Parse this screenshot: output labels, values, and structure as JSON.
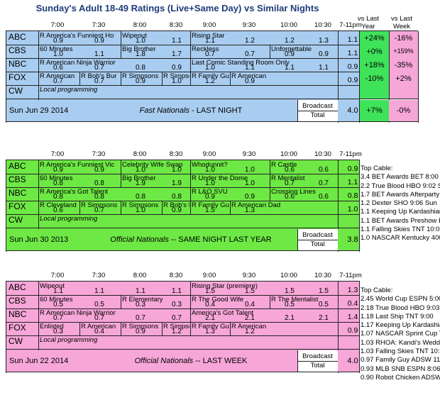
{
  "title": "Sunday's Adult 18-49 Ratings (Live+Same Day) vs Similar Nights",
  "vs_year": "vs Last Year",
  "vs_week": "vs Last Week",
  "times": [
    "7:00",
    "7:30",
    "8:00",
    "8:30",
    "9:00",
    "9:30",
    "10:00",
    "10:30",
    "7-11pm"
  ],
  "networks": [
    "ABC",
    "CBS",
    "NBC",
    "FOX",
    "CW"
  ],
  "blocks": [
    {
      "date": "Sun Jun 29 2014",
      "desc_bold": "Fast Nationals",
      "desc_rest": " - LAST NIGHT",
      "bc_line1": "Broadcast",
      "bc_line2": "Total",
      "bc_value": "4.0",
      "bc_year": "+7%",
      "bc_week": "-0%",
      "rows": [
        {
          "progs": [
            [
              "R America's Funniest Ho",
              0,
              2
            ],
            [
              "Wipeout",
              2,
              4
            ],
            [
              "Rising Star",
              4,
              8
            ]
          ],
          "ratings": [
            "0.9",
            "0.9",
            "1.0",
            "1.1",
            "1.1",
            "1.2",
            "1.2",
            "1.3"
          ],
          "total": "1.1",
          "year": "+24%",
          "week": "-16%"
        },
        {
          "progs": [
            [
              "60 Minutes",
              0,
              2
            ],
            [
              "Big Brother",
              2,
              4
            ],
            [
              "Reckless",
              4,
              6
            ],
            [
              "Unforgettable",
              6,
              8
            ]
          ],
          "ratings": [
            "1.0",
            "1.1",
            "1.8",
            "1.7",
            "0.7",
            "0.7",
            "0.9",
            "0.9"
          ],
          "total": "1.1",
          "year": "+0%",
          "week": "+159%"
        },
        {
          "progs": [
            [
              "R American Ninja Warrior",
              0,
              4
            ],
            [
              "Last Comic Standing Room Only",
              4,
              8
            ]
          ],
          "ratings": [
            "0.6",
            "0.7",
            "0.8",
            "0.9",
            "1.0",
            "1.1",
            "1.1",
            "1.1"
          ],
          "total": "0.9",
          "year": "+18%",
          "week": "-35%"
        },
        {
          "progs": [
            [
              "R American",
              0,
              1
            ],
            [
              "R Bob's Bur",
              1,
              2
            ],
            [
              "R Simpsons",
              2,
              3
            ],
            [
              "R Simpsons",
              3,
              4
            ],
            [
              "R Family Gu",
              4,
              5
            ],
            [
              "R American",
              5,
              6
            ]
          ],
          "ratings": [
            "0.7",
            "0.7",
            "0.9",
            "1.0",
            "1.2",
            "0.9",
            "",
            ""
          ],
          "total": "0.9",
          "year": "-10%",
          "week": "+2%"
        },
        {
          "progs": [
            [
              "Local programming",
              0,
              8
            ]
          ],
          "ratings": [
            "",
            "",
            "",
            "",
            "",
            "",
            "",
            ""
          ],
          "total": "",
          "year": "",
          "week": ""
        }
      ]
    },
    {
      "date": "Sun Jun 30 2013",
      "desc_bold": "Official Nationals",
      "desc_rest": " -- SAME NIGHT LAST YEAR",
      "bc_line1": "Broadcast",
      "bc_line2": "Total",
      "bc_value": "3.8",
      "rows": [
        {
          "progs": [
            [
              "R America's Funniest Vic",
              0,
              2
            ],
            [
              "Celebrity Wife Swap",
              2,
              4
            ],
            [
              "Whodunnit?",
              4,
              6
            ],
            [
              "R Castle",
              6,
              8
            ]
          ],
          "ratings": [
            "0.9",
            "0.9",
            "1.0",
            "1.0",
            "1.0",
            "1.0",
            "0.6",
            "0.6"
          ],
          "total": "0.9"
        },
        {
          "progs": [
            [
              "60 Minutes",
              0,
              2
            ],
            [
              "Big Brother",
              2,
              4
            ],
            [
              "R Under the Dome",
              4,
              6
            ],
            [
              "R Mentalist",
              6,
              8
            ]
          ],
          "ratings": [
            "0.8",
            "0.8",
            "1.9",
            "1.9",
            "1.0",
            "1.0",
            "0.7",
            "0.7"
          ],
          "total": "1.1"
        },
        {
          "progs": [
            [
              "R America's Got Talent",
              0,
              4
            ],
            [
              "R L&O SVU",
              4,
              6
            ],
            [
              "Crossing Lines",
              6,
              8
            ]
          ],
          "ratings": [
            "0.8",
            "0.8",
            "0.8",
            "0.8",
            "0.9",
            "0.9",
            "0.6",
            "0.6"
          ],
          "total": "0.8"
        },
        {
          "progs": [
            [
              "R Cleveland",
              0,
              1
            ],
            [
              "R Simpsons",
              1,
              2
            ],
            [
              "R Simpsons",
              2,
              3
            ],
            [
              "R Bob's Bur",
              3,
              4
            ],
            [
              "R Family Gu",
              4,
              5
            ],
            [
              "R American Dad",
              5,
              7
            ]
          ],
          "ratings": [
            "0.6",
            "0.7",
            "1.0",
            "0.9",
            "1.5",
            "1.3",
            "",
            ""
          ],
          "total": "1.0"
        },
        {
          "progs": [
            [
              "Local programming",
              0,
              8
            ]
          ],
          "ratings": [
            "",
            "",
            "",
            "",
            "",
            "",
            "",
            ""
          ],
          "total": ""
        }
      ],
      "cable_title": "Top Cable:",
      "cable": [
        "3.4 BET Awards BET 8:00 S",
        "2.2 True Blood HBO 9:02 Su",
        "1.7 BET Awards Afterparty",
        "1.2 Dexter SHO 9:06 Sun",
        "1.1 Keeping Up Kardashians",
        "1.1 BET Awards Preshow E",
        "1.1 Falling Skies TNT 10:00",
        "1.0 NASCAR Kentucky 400"
      ]
    },
    {
      "date": "Sun Jun 22 2014",
      "desc_bold": "Official Nationals",
      "desc_rest": " -- LAST WEEK",
      "bc_line1": "Broadcast",
      "bc_line2": "Total",
      "bc_value": "4.0",
      "rows": [
        {
          "progs": [
            [
              "Wipeout",
              0,
              4
            ],
            [
              "Rising Star (premiere)",
              4,
              8
            ]
          ],
          "ratings": [
            "1.1",
            "1.1",
            "1.1",
            "1.1",
            "1.5",
            "1.5",
            "1.5",
            "1.5"
          ],
          "total": "1.3"
        },
        {
          "progs": [
            [
              "60 Minutes",
              0,
              2
            ],
            [
              "R Elementary",
              2,
              4
            ],
            [
              "R The Good Wife",
              4,
              6
            ],
            [
              "R The Mentalist",
              6,
              8
            ]
          ],
          "ratings": [
            "0.5",
            "0.5",
            "0.3",
            "0.3",
            "0.4",
            "0.4",
            "0.5",
            "0.5"
          ],
          "total": "0.4"
        },
        {
          "progs": [
            [
              "R American Ninja Warrior",
              0,
              4
            ],
            [
              "America's Got Talent",
              4,
              8
            ]
          ],
          "ratings": [
            "0.7",
            "0.7",
            "0.7",
            "0.7",
            "2.1",
            "2.1",
            "2.1",
            "2.1"
          ],
          "total": "1.4"
        },
        {
          "progs": [
            [
              "Enlisted",
              0,
              1
            ],
            [
              "R American",
              1,
              2
            ],
            [
              "R Simpsons",
              2,
              3
            ],
            [
              "R Simpsons",
              3,
              4
            ],
            [
              "R Family Gu",
              4,
              5
            ],
            [
              "R American",
              5,
              6
            ]
          ],
          "ratings": [
            "0.3",
            "0.4",
            "0.9",
            "1.2",
            "1.3",
            "1.2",
            "",
            ""
          ],
          "total": "0.9"
        },
        {
          "progs": [
            [
              "Local programming",
              0,
              8
            ]
          ],
          "ratings": [
            "",
            "",
            "",
            "",
            "",
            "",
            "",
            ""
          ],
          "total": ""
        }
      ],
      "cable_title": "Top Cable:",
      "cable": [
        "2.45 World Cup ESPN 5:00",
        "2.18 True Blood HBO 9:03",
        "1.18 Last Ship TNT 9:00",
        "1.17 Keeping Up Kardashian",
        "1.07 NASCAR Sprint Cup Th",
        "1.03 RHOA: Kandi's Weddin",
        "1.03 Falling Skies TNT 10:03",
        "0.97 Family Guy ADSW 11:0",
        "0.93 MLB SNB ESPN 8:06",
        "0.90 Robot Chicken ADSW"
      ]
    }
  ],
  "colors": {
    "blue": "#a9cdf0",
    "green": "#6ee845",
    "pink": "#f7a6d8",
    "pos": "#3fe35a",
    "neg": "#f7a6d8"
  }
}
